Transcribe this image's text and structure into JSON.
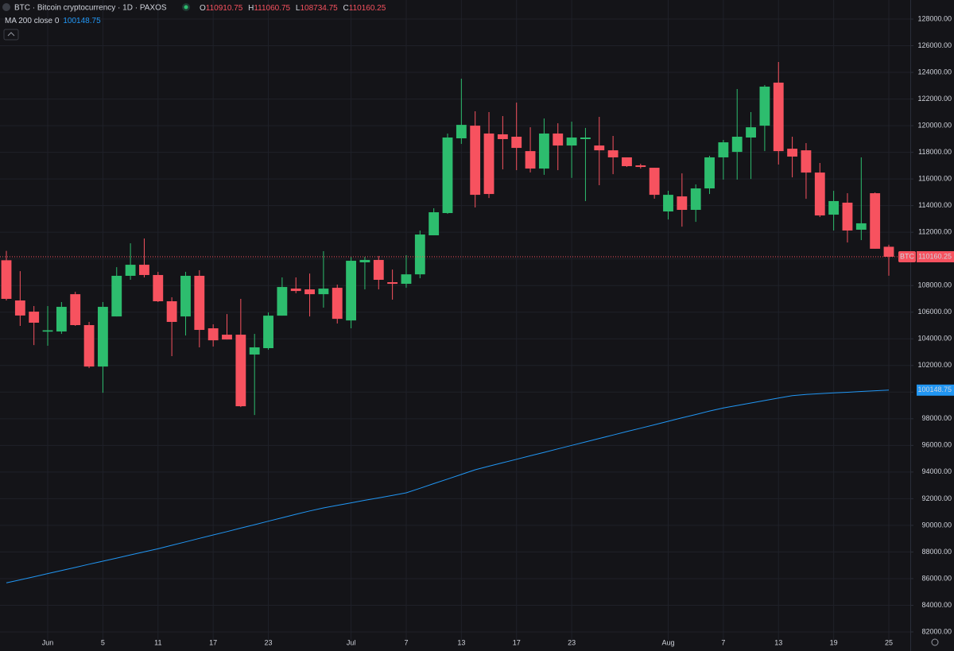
{
  "chart_data": {
    "type": "candlestick",
    "title": "BTC · Bitcoin cryptocurrency · 1D · PAXOS",
    "ohlc_letters": [
      "O",
      "H",
      "L",
      "C"
    ],
    "ma_name": "MA 200 close 0",
    "symbol_tag": "BTC",
    "up_color": "#2dbd6e",
    "down_color": "#f7525f",
    "categories": [
      null,
      null,
      null,
      "Jun",
      null,
      null,
      null,
      "5",
      null,
      null,
      null,
      "11",
      null,
      null,
      null,
      "17",
      null,
      null,
      null,
      "23",
      null,
      null,
      null,
      null,
      null,
      "Jul",
      null,
      null,
      null,
      "7",
      null,
      null,
      null,
      "13",
      null,
      null,
      null,
      "17",
      null,
      null,
      null,
      "23",
      null,
      null,
      null,
      null,
      null,
      null,
      "Aug",
      null,
      null,
      null,
      "7",
      null,
      null,
      null,
      "13",
      null,
      null,
      null,
      "19",
      null,
      null,
      null,
      "25"
    ],
    "open": [
      109900,
      106880,
      106040,
      104540,
      104550,
      107350,
      105030,
      101920,
      105680,
      108730,
      109560,
      108790,
      106820,
      105680,
      108730,
      104790,
      104310,
      104310,
      102820,
      103300,
      105740,
      107770,
      107710,
      107350,
      107830,
      105380,
      109740,
      109920,
      108250,
      108130,
      108840,
      111770,
      113440,
      119050,
      120000,
      119410,
      119350,
      119170,
      118090,
      116780,
      119410,
      118510,
      118990,
      118510,
      118150,
      117620,
      117020,
      116840,
      113560,
      114690,
      113680,
      115290,
      117620,
      118030,
      119110,
      120000,
      123230,
      118270,
      118150,
      116480,
      113320,
      114220,
      112190,
      114930,
      110910.75
    ],
    "high": [
      110600,
      109080,
      106460,
      106460,
      106760,
      107530,
      105270,
      106760,
      109380,
      111170,
      111530,
      109030,
      107120,
      109030,
      109150,
      105090,
      105860,
      107000,
      104370,
      105980,
      108610,
      108610,
      108900,
      110580,
      108070,
      110160,
      110160,
      110220,
      109200,
      110280,
      112130,
      113800,
      119410,
      123525,
      121080,
      121020,
      120720,
      121730,
      119880,
      120540,
      120180,
      120300,
      119830,
      120660,
      119230,
      117620,
      117140,
      116840,
      115110,
      116420,
      115590,
      117740,
      118930,
      122750,
      121020,
      123050,
      124780,
      119170,
      118690,
      117200,
      115110,
      114930,
      117620,
      114990,
      111060.75
    ],
    "low": [
      106880,
      104970,
      103530,
      103480,
      104370,
      104970,
      101800,
      99950,
      105680,
      108430,
      108610,
      106760,
      102700,
      104250,
      103360,
      103420,
      103950,
      98880,
      98280,
      103180,
      105740,
      107420,
      105680,
      106340,
      105150,
      104790,
      107710,
      107710,
      106940,
      107830,
      108550,
      111770,
      113380,
      118630,
      113860,
      114570,
      116720,
      116660,
      116490,
      116310,
      116660,
      116080,
      114340,
      115530,
      116360,
      116900,
      116780,
      114520,
      112960,
      112420,
      112780,
      114870,
      115950,
      115950,
      116000,
      118090,
      117080,
      116120,
      114510,
      113140,
      112130,
      111230,
      111410,
      110760,
      108734.75
    ],
    "close": [
      107000,
      105750,
      105210,
      104640,
      106400,
      105030,
      101920,
      106400,
      108730,
      109560,
      108790,
      106820,
      105270,
      108730,
      104670,
      103890,
      103950,
      98940,
      103360,
      105740,
      107890,
      107590,
      107350,
      107770,
      105500,
      109860,
      109920,
      108430,
      108130,
      108840,
      111830,
      113500,
      119110,
      120060,
      114810,
      114870,
      118990,
      118330,
      116780,
      119410,
      118510,
      119110,
      119110,
      118150,
      117620,
      116960,
      116900,
      114810,
      114810,
      113680,
      115290,
      117620,
      118750,
      119170,
      119880,
      122930,
      118090,
      117680,
      116480,
      113260,
      114340,
      112130,
      112670,
      110760,
      110160.25
    ],
    "ma": {
      "color": "#2196f3",
      "values": [
        85680,
        85910,
        86140,
        86380,
        86610,
        86840,
        87080,
        87310,
        87540,
        87780,
        88010,
        88240,
        88500,
        88760,
        89020,
        89280,
        89530,
        89790,
        90050,
        90310,
        90570,
        90830,
        91080,
        91310,
        91500,
        91690,
        91880,
        92060,
        92250,
        92440,
        92780,
        93130,
        93470,
        93820,
        94170,
        94440,
        94700,
        94960,
        95220,
        95480,
        95740,
        96000,
        96260,
        96520,
        96780,
        97040,
        97290,
        97550,
        97810,
        98070,
        98320,
        98580,
        98810,
        99000,
        99180,
        99370,
        99560,
        99740,
        99830,
        99880,
        99940,
        99990,
        100050,
        100100,
        100148.75
      ]
    },
    "ylim": [
      81403,
      129432
    ],
    "yticks": [
      {
        "value": 82000,
        "label": "82000.00"
      },
      {
        "value": 84000,
        "label": "84000.00"
      },
      {
        "value": 86000,
        "label": "86000.00"
      },
      {
        "value": 88000,
        "label": "88000.00"
      },
      {
        "value": 90000,
        "label": "90000.00"
      },
      {
        "value": 92000,
        "label": "92000.00"
      },
      {
        "value": 94000,
        "label": "94000.00"
      },
      {
        "value": 96000,
        "label": "96000.00"
      },
      {
        "value": 98000,
        "label": "98000.00"
      },
      {
        "value": 100000,
        "label": "100000.00"
      },
      {
        "value": 102000,
        "label": "102000.00"
      },
      {
        "value": 104000,
        "label": "104000.00"
      },
      {
        "value": 106000,
        "label": "106000.00"
      },
      {
        "value": 108000,
        "label": "108000.00"
      },
      {
        "value": 110000,
        "label": "110000.00"
      },
      {
        "value": 112000,
        "label": "112000.00"
      },
      {
        "value": 114000,
        "label": "114000.00"
      },
      {
        "value": 116000,
        "label": "116000.00"
      },
      {
        "value": 118000,
        "label": "118000.00"
      },
      {
        "value": 120000,
        "label": "120000.00"
      },
      {
        "value": 122000,
        "label": "122000.00"
      },
      {
        "value": 124000,
        "label": "124000.00"
      },
      {
        "value": 126000,
        "label": "126000.00"
      },
      {
        "value": 128000,
        "label": "128000.00"
      }
    ],
    "grid": true
  }
}
